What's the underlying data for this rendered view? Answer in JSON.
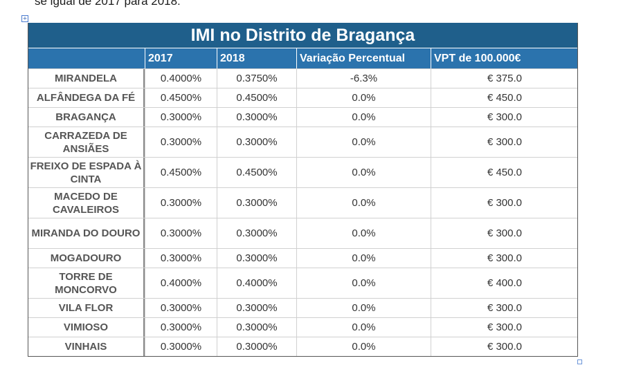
{
  "intro_text": "se igual de 2017 para 2018:",
  "table": {
    "title": "IMI no Distrito de Bragança",
    "headers": [
      "",
      "2017",
      "2018",
      "Variação Percentual",
      "VPT de 100.000€"
    ],
    "rows": [
      {
        "name": "MIRANDELA",
        "y2017": "0.4000%",
        "y2018": "0.3750%",
        "var": "-6.3%",
        "vpt": "€ 375.0"
      },
      {
        "name": "ALFÂNDEGA DA FÉ",
        "y2017": "0.4500%",
        "y2018": "0.4500%",
        "var": "0.0%",
        "vpt": "€ 450.0"
      },
      {
        "name": "BRAGANÇA",
        "y2017": "0.3000%",
        "y2018": "0.3000%",
        "var": "0.0%",
        "vpt": "€ 300.0"
      },
      {
        "name": "CARRAZEDA DE ANSIÃES",
        "y2017": "0.3000%",
        "y2018": "0.3000%",
        "var": "0.0%",
        "vpt": "€ 300.0"
      },
      {
        "name": "FREIXO DE ESPADA À CINTA",
        "y2017": "0.4500%",
        "y2018": "0.4500%",
        "var": "0.0%",
        "vpt": "€ 450.0"
      },
      {
        "name": "MACEDO DE CAVALEIROS",
        "y2017": "0.3000%",
        "y2018": "0.3000%",
        "var": "0.0%",
        "vpt": "€ 300.0"
      },
      {
        "name": "MIRANDA DO DOURO",
        "y2017": "0.3000%",
        "y2018": "0.3000%",
        "var": "0.0%",
        "vpt": "€ 300.0"
      },
      {
        "name": "MOGADOURO",
        "y2017": "0.3000%",
        "y2018": "0.3000%",
        "var": "0.0%",
        "vpt": "€ 300.0"
      },
      {
        "name": "TORRE DE MONCORVO",
        "y2017": "0.4000%",
        "y2018": "0.4000%",
        "var": "0.0%",
        "vpt": "€ 400.0"
      },
      {
        "name": "VILA FLOR",
        "y2017": "0.3000%",
        "y2018": "0.3000%",
        "var": "0.0%",
        "vpt": "€ 300.0"
      },
      {
        "name": "VIMIOSO",
        "y2017": "0.3000%",
        "y2018": "0.3000%",
        "var": "0.0%",
        "vpt": "€ 300.0"
      },
      {
        "name": "VINHAIS",
        "y2017": "0.3000%",
        "y2018": "0.3000%",
        "var": "0.0%",
        "vpt": "€ 300.0"
      }
    ]
  },
  "colors": {
    "title_bg": "#1f5f8b",
    "header_bg": "#2b73ad",
    "negative_variation": "#3c9a2c"
  },
  "icons": {
    "table_move_handle": "move-handle-icon"
  }
}
